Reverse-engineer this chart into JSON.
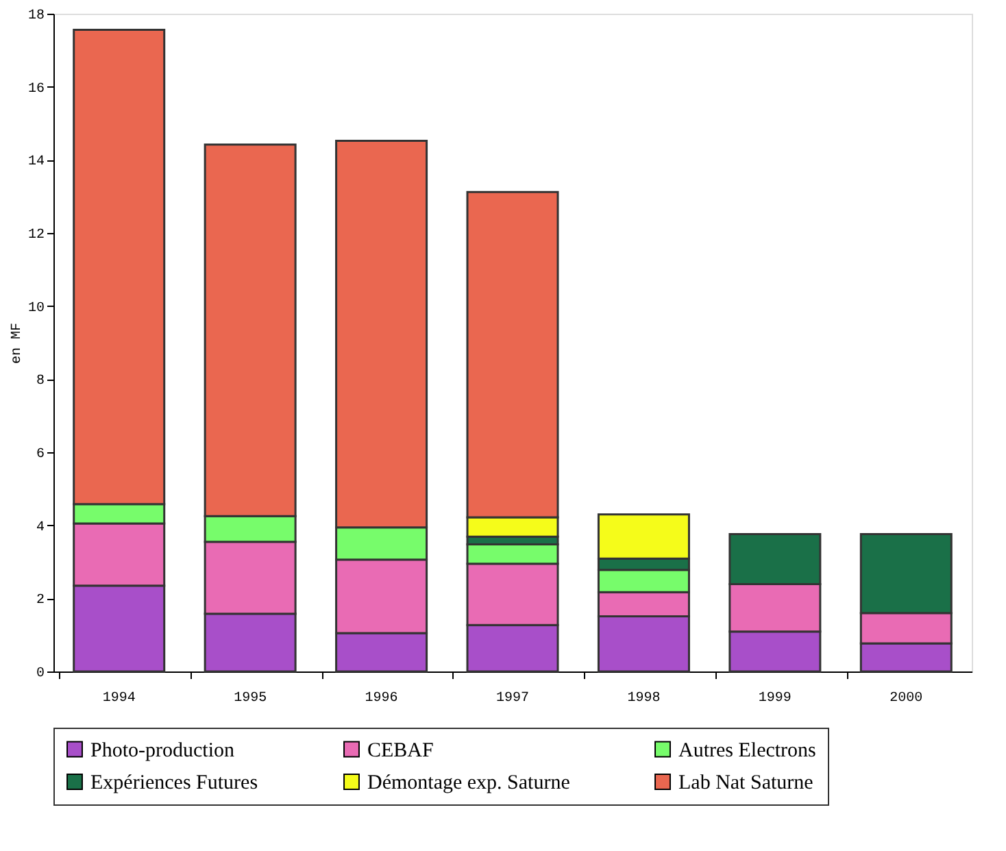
{
  "chart_data": {
    "type": "bar",
    "stacked": true,
    "ylabel": "en MF",
    "categories": [
      "1994",
      "1995",
      "1996",
      "1997",
      "1998",
      "1999",
      "2000"
    ],
    "series": [
      {
        "name": "Photo-production",
        "color": "#a84fc9",
        "values": [
          2.35,
          1.58,
          1.05,
          1.27,
          1.51,
          1.09,
          0.77
        ]
      },
      {
        "name": "CEBAF",
        "color": "#e96bb4",
        "values": [
          1.7,
          1.97,
          2.01,
          1.68,
          0.66,
          1.3,
          0.83
        ]
      },
      {
        "name": "Autres Electrons",
        "color": "#77fc6b",
        "values": [
          0.53,
          0.7,
          0.88,
          0.53,
          0.61,
          null,
          null
        ]
      },
      {
        "name": "Expériences Futures",
        "color": "#1a7048",
        "values": [
          null,
          null,
          null,
          0.21,
          0.31,
          1.37,
          2.16
        ]
      },
      {
        "name": "Démontage exp. Saturne",
        "color": "#f5fc1a",
        "values": [
          null,
          null,
          null,
          0.53,
          1.21,
          null,
          null
        ]
      },
      {
        "name": "Lab Nat Saturne",
        "color": "#ea6750",
        "values": [
          12.98,
          10.17,
          10.58,
          8.9,
          null,
          null,
          null
        ]
      }
    ],
    "ylim": [
      0,
      18
    ],
    "yticks": [
      0,
      2,
      4,
      6,
      8,
      10,
      12,
      14,
      16,
      18
    ],
    "grid": false,
    "legend": "bottom"
  }
}
